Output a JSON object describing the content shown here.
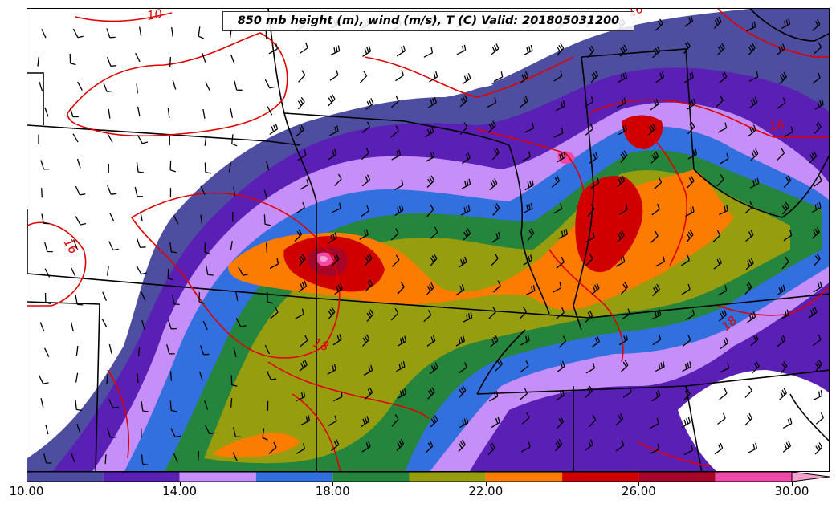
{
  "title": "850 mb height (m), wind (m/s), T (C) Valid: 201805031200",
  "colorbar": {
    "min": 10,
    "max": 30,
    "extend": "max",
    "bins": [
      {
        "from": 10,
        "to": 12,
        "color": "#4d4ea0"
      },
      {
        "from": 12,
        "to": 14,
        "color": "#5a1fb5"
      },
      {
        "from": 14,
        "to": 16,
        "color": "#c68ef8"
      },
      {
        "from": 16,
        "to": 18,
        "color": "#3270df"
      },
      {
        "from": 18,
        "to": 20,
        "color": "#25853c"
      },
      {
        "from": 20,
        "to": 22,
        "color": "#969d0e"
      },
      {
        "from": 22,
        "to": 24,
        "color": "#fb7c00"
      },
      {
        "from": 24,
        "to": 26,
        "color": "#d00000"
      },
      {
        "from": 26,
        "to": 28,
        "color": "#a80628"
      },
      {
        "from": 28,
        "to": 30,
        "color": "#f048a6"
      },
      {
        "from": 30,
        "to": null,
        "color": "#f6a0d0"
      }
    ],
    "tick_labels": [
      "10.00",
      "14.00",
      "18.00",
      "22.00",
      "26.00",
      "30.00"
    ],
    "tick_values": [
      10,
      14,
      18,
      22,
      26,
      30
    ]
  },
  "contour_labels": [
    "10",
    "16",
    "16",
    "16",
    "18",
    "18"
  ],
  "colors": {
    "temperature_contour": "#e00000",
    "state_borders": "#000000",
    "wind_barbs": "#000000"
  }
}
